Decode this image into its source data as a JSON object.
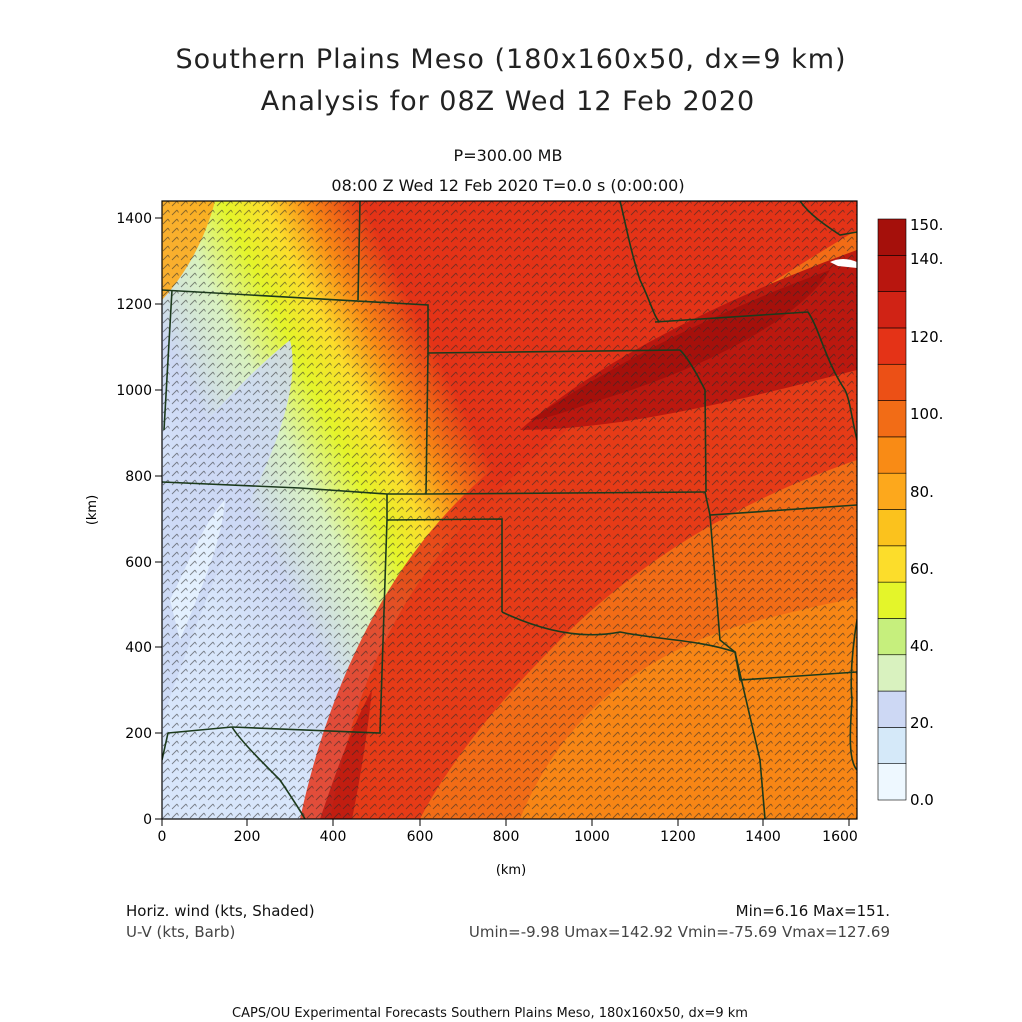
{
  "header": {
    "title_line1": "Southern Plains Meso (180x160x50, dx=9 km)",
    "title_line2": "Analysis for 08Z Wed 12 Feb 2020",
    "level": "P=300.00 MB",
    "time": "08:00 Z Wed 12 Feb 2020    T=0.0 s (0:00:00)"
  },
  "axes": {
    "x_label": "(km)",
    "y_label": "(km)",
    "x_ticks": [
      "0",
      "200",
      "400",
      "600",
      "800",
      "1000",
      "1200",
      "1400",
      "1600"
    ],
    "y_ticks": [
      "0",
      "200",
      "400",
      "600",
      "800",
      "1000",
      "1200",
      "1400"
    ]
  },
  "colorbar": {
    "labels": [
      "0.0",
      "20.",
      "40.",
      "60.",
      "80.",
      "100.",
      "120.",
      "140.",
      "150."
    ],
    "colors": [
      "#eef8ff",
      "#d5e9f9",
      "#cdd8f4",
      "#d9f2bf",
      "#c6ef7d",
      "#e4f52a",
      "#fcdd2b",
      "#fbc21d",
      "#fda81c",
      "#f98b15",
      "#f26c16",
      "#ec5016",
      "#e43317",
      "#d02315",
      "#b8160f",
      "#a5100b"
    ]
  },
  "info": {
    "left1": "Horiz. wind (kts, Shaded)",
    "left2": "U-V (kts, Barb)",
    "right1": "Min=6.16 Max=151.",
    "right2": "Umin=-9.98 Umax=142.92 Vmin=-75.69 Vmax=127.69"
  },
  "footer": "CAPS/OU Experimental Forecasts  Southern Plains Meso, 180x160x50, dx=9 km"
}
